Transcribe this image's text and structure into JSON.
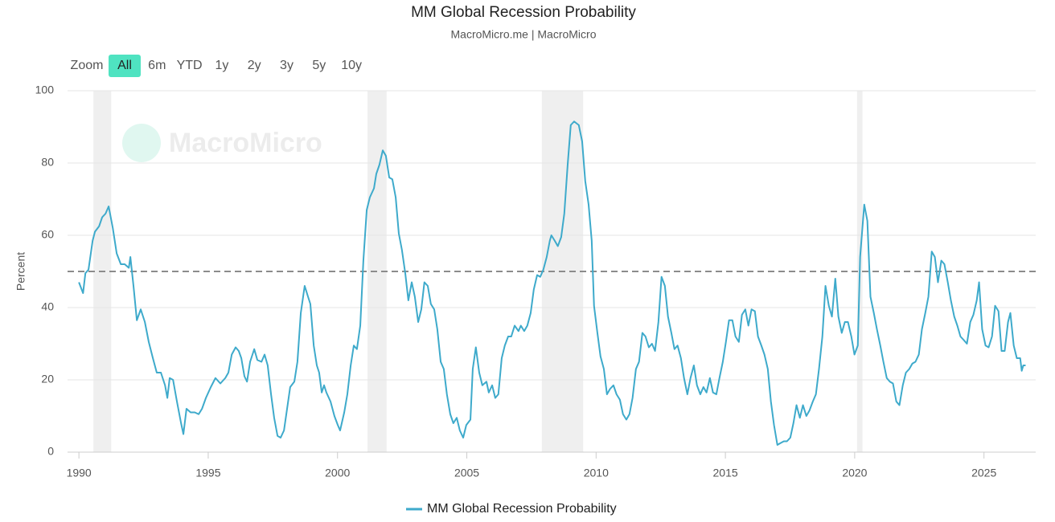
{
  "chart_data": {
    "type": "line",
    "title": "MM Global Recession Probability",
    "subtitle": "MacroMicro.me | MacroMicro",
    "watermark": "MacroMicro",
    "range_selector": {
      "label": "Zoom",
      "buttons": [
        "All",
        "6m",
        "YTD",
        "1y",
        "2y",
        "3y",
        "5y",
        "10y"
      ],
      "selected": 0,
      "selected_color": "#4fe3c1"
    },
    "y_label": "Percent",
    "xlim": [
      1989.56,
      2027
    ],
    "xticks": [
      1990,
      1995,
      2000,
      2005,
      2010,
      2015,
      2020,
      2025
    ],
    "ylim": [
      0,
      100
    ],
    "yticks": [
      0,
      20,
      40,
      60,
      80,
      100
    ],
    "grid": true,
    "threshold": 50,
    "recessions": [
      [
        1990.56,
        1991.25
      ],
      [
        2001.16,
        2001.9
      ],
      [
        2007.9,
        2009.5
      ],
      [
        2020.09,
        2020.3
      ]
    ],
    "recession_color": "#efefef",
    "legend_position": "bottom",
    "x": [
      1990.0,
      1990.16,
      1990.25,
      1990.37,
      1990.53,
      1990.62,
      1990.78,
      1990.9,
      1991.03,
      1991.15,
      1991.31,
      1991.46,
      1991.62,
      1991.77,
      1991.93,
      1991.99,
      1992.11,
      1992.24,
      1992.39,
      1992.55,
      1992.7,
      1992.86,
      1993.01,
      1993.17,
      1993.33,
      1993.42,
      1993.51,
      1993.64,
      1993.79,
      1993.95,
      1994.04,
      1994.16,
      1994.32,
      1994.48,
      1994.63,
      1994.76,
      1994.91,
      1995.1,
      1995.28,
      1995.47,
      1995.66,
      1995.78,
      1995.91,
      1996.06,
      1996.18,
      1996.28,
      1996.4,
      1996.5,
      1996.62,
      1996.78,
      1996.9,
      1997.06,
      1997.18,
      1997.3,
      1997.43,
      1997.55,
      1997.68,
      1997.8,
      1997.93,
      1998.05,
      1998.17,
      1998.33,
      1998.45,
      1998.58,
      1998.73,
      1998.86,
      1998.95,
      1999.08,
      1999.2,
      1999.29,
      1999.39,
      1999.48,
      1999.57,
      1999.73,
      1999.88,
      2000.01,
      2000.1,
      2000.26,
      2000.38,
      2000.51,
      2000.63,
      2000.75,
      2000.88,
      2001.0,
      2001.13,
      2001.25,
      2001.41,
      2001.5,
      2001.62,
      2001.75,
      2001.87,
      2002.0,
      2002.12,
      2002.25,
      2002.37,
      2002.49,
      2002.62,
      2002.74,
      2002.87,
      2002.99,
      2003.12,
      2003.24,
      2003.36,
      2003.49,
      2003.61,
      2003.74,
      2003.86,
      2003.99,
      2004.11,
      2004.23,
      2004.36,
      2004.48,
      2004.61,
      2004.73,
      2004.86,
      2004.98,
      2005.14,
      2005.23,
      2005.35,
      2005.48,
      2005.6,
      2005.76,
      2005.85,
      2005.98,
      2006.1,
      2006.22,
      2006.35,
      2006.47,
      2006.6,
      2006.72,
      2006.85,
      2007.0,
      2007.09,
      2007.22,
      2007.34,
      2007.47,
      2007.59,
      2007.72,
      2007.84,
      2007.96,
      2008.09,
      2008.21,
      2008.27,
      2008.4,
      2008.52,
      2008.65,
      2008.77,
      2008.9,
      2009.02,
      2009.15,
      2009.33,
      2009.46,
      2009.58,
      2009.71,
      2009.83,
      2009.92,
      2010.05,
      2010.17,
      2010.3,
      2010.42,
      2010.54,
      2010.67,
      2010.79,
      2010.92,
      2011.04,
      2011.17,
      2011.29,
      2011.41,
      2011.54,
      2011.66,
      2011.79,
      2011.91,
      2012.04,
      2012.16,
      2012.28,
      2012.41,
      2012.53,
      2012.66,
      2012.78,
      2012.91,
      2013.03,
      2013.15,
      2013.28,
      2013.4,
      2013.53,
      2013.65,
      2013.78,
      2013.9,
      2014.03,
      2014.15,
      2014.27,
      2014.4,
      2014.52,
      2014.65,
      2014.77,
      2014.9,
      2015.02,
      2015.14,
      2015.27,
      2015.39,
      2015.52,
      2015.64,
      2015.77,
      2015.89,
      2016.01,
      2016.14,
      2016.26,
      2016.39,
      2016.51,
      2016.64,
      2016.76,
      2016.88,
      2017.01,
      2017.13,
      2017.26,
      2017.38,
      2017.51,
      2017.63,
      2017.75,
      2017.88,
      2018.0,
      2018.13,
      2018.25,
      2018.38,
      2018.5,
      2018.62,
      2018.75,
      2018.87,
      2019.0,
      2019.12,
      2019.25,
      2019.37,
      2019.5,
      2019.62,
      2019.74,
      2019.87,
      2019.99,
      2020.12,
      2020.21,
      2020.37,
      2020.49,
      2020.61,
      2020.74,
      2020.86,
      2020.99,
      2021.11,
      2021.24,
      2021.36,
      2021.48,
      2021.61,
      2021.73,
      2021.86,
      2021.98,
      2022.11,
      2022.23,
      2022.35,
      2022.48,
      2022.6,
      2022.73,
      2022.85,
      2022.98,
      2023.1,
      2023.22,
      2023.35,
      2023.47,
      2023.6,
      2023.72,
      2023.85,
      2023.97,
      2024.09,
      2024.22,
      2024.34,
      2024.47,
      2024.59,
      2024.72,
      2024.81,
      2024.93,
      2025.06,
      2025.18,
      2025.31,
      2025.43,
      2025.56,
      2025.68,
      2025.8,
      2025.93,
      2026.02,
      2026.15,
      2026.27,
      2026.4,
      2026.46,
      2026.52,
      2026.61
    ],
    "series": [
      {
        "name": "MM Global Recession Probability",
        "color": "#3eaacb",
        "values": [
          47,
          44,
          49.5,
          50.5,
          58.5,
          61,
          62.5,
          65,
          66,
          68,
          62,
          55,
          52,
          52,
          51,
          54,
          46,
          36.5,
          39.5,
          36,
          30.5,
          26,
          22,
          22,
          18.5,
          15,
          20.5,
          20,
          14,
          8,
          5,
          12,
          11,
          11,
          10.5,
          12,
          15,
          18,
          20.5,
          19,
          20.5,
          22,
          27,
          29,
          28,
          26,
          21,
          19.5,
          25,
          28.5,
          25.5,
          25,
          27,
          24,
          16,
          9.5,
          4.5,
          4,
          6,
          12,
          18,
          19.5,
          25,
          38.5,
          46,
          43,
          41,
          29.5,
          24,
          22,
          16.5,
          18.5,
          16.5,
          14,
          10,
          7.5,
          6,
          11,
          16,
          24,
          29.5,
          28.5,
          35,
          53,
          67,
          70.5,
          73,
          77,
          79.5,
          83.5,
          82,
          76,
          75.5,
          70.5,
          60.5,
          56,
          49.5,
          42,
          47,
          43,
          36,
          39.5,
          47,
          46,
          41,
          39.5,
          34,
          25,
          23,
          16,
          10.5,
          8,
          9.5,
          6,
          4,
          7.5,
          9,
          23,
          29,
          22,
          18.5,
          19.5,
          16.5,
          18.5,
          15,
          16,
          26,
          29.5,
          32,
          32,
          35,
          33.5,
          35,
          33.5,
          35,
          38.5,
          45,
          49,
          48.5,
          50.5,
          54,
          58.5,
          60,
          58.5,
          57,
          59.5,
          66,
          79.5,
          90.5,
          91.5,
          90.5,
          86,
          75,
          68.5,
          58.5,
          40.5,
          33,
          26.5,
          23,
          16,
          17.5,
          18.5,
          16,
          14.5,
          10.5,
          9,
          10.5,
          15,
          23,
          25,
          33,
          32,
          29,
          30,
          28,
          36,
          48.5,
          46,
          37.5,
          33,
          28.5,
          29.5,
          26,
          20.5,
          16,
          20.5,
          24,
          18.5,
          16,
          18,
          16.5,
          20.5,
          16.5,
          16,
          20.5,
          25,
          30.5,
          36.5,
          36.5,
          32,
          30.5,
          38,
          39.5,
          35,
          39.5,
          39,
          32,
          29.5,
          27,
          23,
          14,
          7.5,
          2,
          2.5,
          3,
          3,
          4,
          8,
          13,
          9.5,
          13,
          10,
          11.5,
          14,
          16,
          23,
          32,
          46,
          40.5,
          37.5,
          48,
          37.5,
          33,
          36,
          36,
          32,
          27,
          29.5,
          54,
          68.5,
          64,
          43,
          38.5,
          34,
          29.5,
          25,
          20.5,
          19.5,
          19,
          14,
          13,
          18.5,
          22,
          23,
          24.5,
          25,
          27,
          34,
          38.5,
          43,
          55.5,
          54,
          47,
          53,
          52,
          47,
          42,
          37.5,
          35,
          32,
          31,
          30,
          36,
          38,
          42,
          47,
          34,
          29.5,
          29,
          32,
          40.5,
          39,
          28,
          28,
          36,
          38.5,
          29.5,
          26,
          26,
          22.5,
          24,
          24
        ]
      }
    ]
  }
}
